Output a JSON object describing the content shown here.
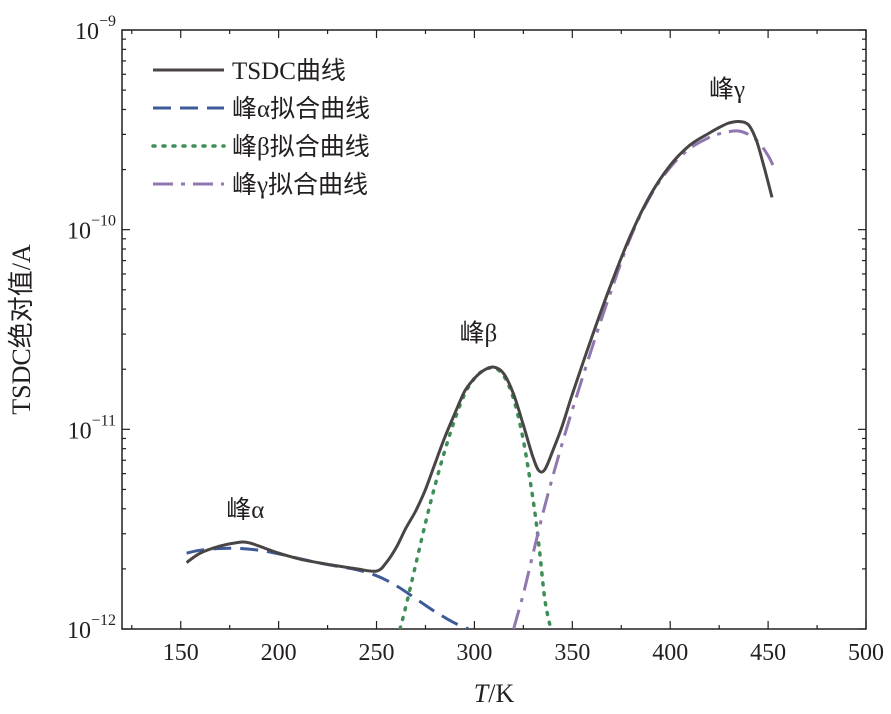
{
  "chart_data": {
    "type": "line",
    "xlabel": "T/K",
    "xlabel_italic": "T",
    "xlabel_unit": "/K",
    "ylabel": "TSDC绝对值/A",
    "xlim": [
      120,
      500
    ],
    "ylim": [
      1e-12,
      1e-09
    ],
    "yscale": "log",
    "x_ticks": [
      150,
      200,
      250,
      300,
      350,
      400,
      450,
      500
    ],
    "y_ticks": [
      {
        "value": 1e-12,
        "base": "10",
        "exp": "−12"
      },
      {
        "value": 1e-11,
        "base": "10",
        "exp": "−11"
      },
      {
        "value": 1e-10,
        "base": "10",
        "exp": "−10"
      },
      {
        "value": 1e-09,
        "base": "10",
        "exp": "−9"
      }
    ],
    "legend_position": "top-left",
    "grid": false,
    "series": [
      {
        "name": "TSDC曲线",
        "style": "solid",
        "color": "#4a4545",
        "x": [
          153,
          160,
          170,
          180,
          185,
          190,
          200,
          210,
          220,
          230,
          240,
          250,
          255,
          260,
          265,
          270,
          275,
          280,
          285,
          290,
          295,
          300,
          305,
          310,
          315,
          320,
          325,
          330,
          333,
          336,
          340,
          345,
          350,
          360,
          370,
          380,
          390,
          400,
          410,
          420,
          425,
          430,
          435,
          440,
          444,
          448,
          452
        ],
        "y": [
          2.15e-12,
          2.4e-12,
          2.6e-12,
          2.72e-12,
          2.7e-12,
          2.6e-12,
          2.4e-12,
          2.25e-12,
          2.15e-12,
          2.07e-12,
          2e-12,
          1.95e-12,
          2.15e-12,
          2.55e-12,
          3.2e-12,
          3.9e-12,
          5e-12,
          6.8e-12,
          9.2e-12,
          1.2e-11,
          1.55e-11,
          1.8e-11,
          1.98e-11,
          2.05e-11,
          1.9e-11,
          1.5e-11,
          1.05e-11,
          7.2e-12,
          6.2e-12,
          6.3e-12,
          7.8e-12,
          1.05e-11,
          1.5e-11,
          2.9e-11,
          5.4e-11,
          9.5e-11,
          1.5e-10,
          2.1e-10,
          2.65e-10,
          3.05e-10,
          3.25e-10,
          3.42e-10,
          3.48e-10,
          3.35e-10,
          2.8e-10,
          2.05e-10,
          1.45e-10
        ]
      },
      {
        "name": "峰α拟合曲线",
        "style": "dashed",
        "color": "#3d5a99",
        "x": [
          153,
          160,
          170,
          180,
          190,
          200,
          210,
          220,
          230,
          240,
          250,
          260,
          270,
          280,
          290,
          297
        ],
        "y": [
          2.4e-12,
          2.48e-12,
          2.53e-12,
          2.53e-12,
          2.48e-12,
          2.38e-12,
          2.26e-12,
          2.15e-12,
          2.06e-12,
          1.98e-12,
          1.85e-12,
          1.65e-12,
          1.42e-12,
          1.22e-12,
          1.07e-12,
          1e-12
        ]
      },
      {
        "name": "峰β拟合曲线",
        "style": "dotted",
        "color": "#3f8e58",
        "x": [
          262,
          265,
          270,
          275,
          280,
          285,
          290,
          295,
          300,
          305,
          310,
          315,
          320,
          325,
          330,
          333,
          336,
          339
        ],
        "y": [
          1e-12,
          1.3e-12,
          2.1e-12,
          3.4e-12,
          5.3e-12,
          7.9e-12,
          1.12e-11,
          1.5e-11,
          1.8e-11,
          1.98e-11,
          2.03e-11,
          1.85e-11,
          1.42e-11,
          8.8e-12,
          4.4e-12,
          2.6e-12,
          1.4e-12,
          1e-12
        ]
      },
      {
        "name": "峰γ拟合曲线",
        "style": "dashdot",
        "color": "#9177b0",
        "x": [
          320,
          325,
          330,
          335,
          340,
          345,
          350,
          360,
          370,
          380,
          390,
          400,
          410,
          420,
          425,
          430,
          435,
          440,
          445,
          450,
          453
        ],
        "y": [
          1e-12,
          1.5e-12,
          2.4e-12,
          3.8e-12,
          5.8e-12,
          8.6e-12,
          1.25e-11,
          2.55e-11,
          5e-11,
          9.3e-11,
          1.48e-10,
          2.05e-10,
          2.55e-10,
          2.9e-10,
          3.02e-10,
          3.1e-10,
          3.12e-10,
          3e-10,
          2.75e-10,
          2.35e-10,
          2.05e-10
        ]
      }
    ],
    "annotations": [
      {
        "text": "峰α",
        "x": 183,
        "y": 3.6e-12
      },
      {
        "text": "峰β",
        "x": 302,
        "y": 2.75e-11
      },
      {
        "text": "峰γ",
        "x": 429,
        "y": 4.6e-10
      }
    ]
  }
}
